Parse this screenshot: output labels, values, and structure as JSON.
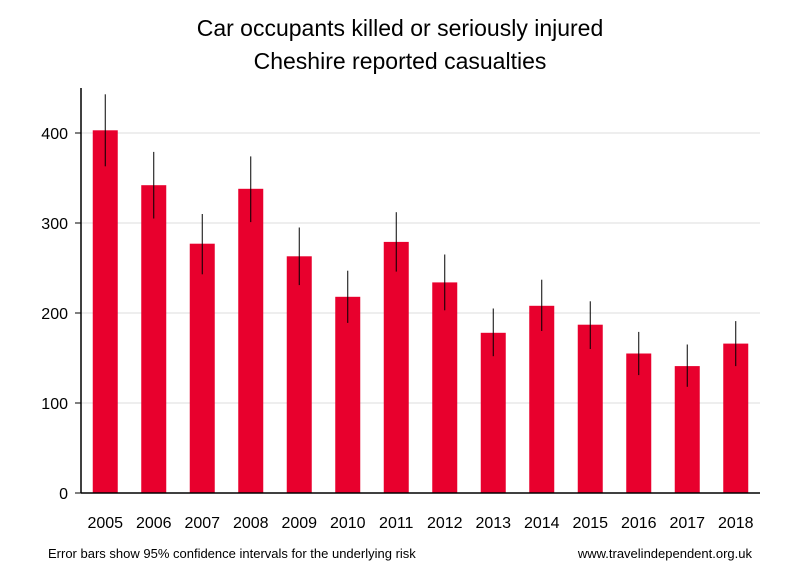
{
  "chart_data": {
    "type": "bar",
    "title": "Car occupants killed or seriously injured",
    "subtitle": "Cheshire reported casualties",
    "categories": [
      "2005",
      "2006",
      "2007",
      "2008",
      "2009",
      "2010",
      "2011",
      "2012",
      "2013",
      "2014",
      "2015",
      "2016",
      "2017",
      "2018"
    ],
    "values": [
      403,
      342,
      277,
      338,
      263,
      218,
      279,
      234,
      178,
      208,
      187,
      155,
      141,
      166
    ],
    "error_low": [
      363,
      305,
      243,
      301,
      231,
      189,
      246,
      203,
      152,
      180,
      160,
      131,
      118,
      141
    ],
    "error_high": [
      443,
      379,
      310,
      374,
      295,
      247,
      312,
      265,
      205,
      237,
      213,
      179,
      165,
      191
    ],
    "ylim": [
      0,
      445
    ],
    "yticks": [
      0,
      100,
      200,
      300,
      400
    ],
    "grid": true,
    "bar_color": "#e8002d",
    "footnote_left": "Error bars show 95% confidence intervals for the underlying risk",
    "footnote_right": "www.travelindependent.org.uk"
  }
}
